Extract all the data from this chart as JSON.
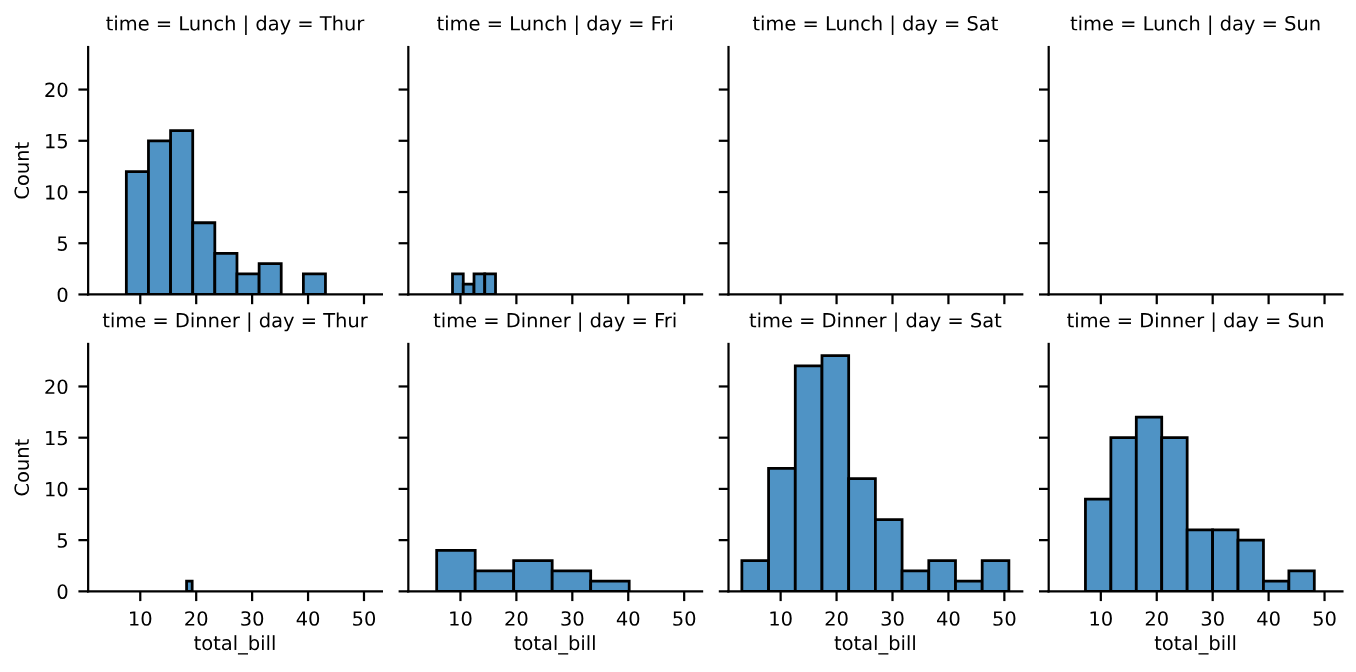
{
  "chart_data": [
    {
      "type": "histogram",
      "title": "time = Lunch | day = Thur",
      "ylabel": "Count",
      "bins": [
        7.51,
        11.466,
        15.42,
        19.38,
        23.33,
        27.29,
        31.25,
        35.2,
        39.16,
        43.11
      ],
      "values": [
        12,
        15,
        16,
        7,
        4,
        2,
        3,
        0,
        2
      ],
      "color": "#4f93c5",
      "xlim": [
        0.68,
        53.2
      ],
      "ylim": [
        0,
        24.15
      ],
      "xticks": [
        10,
        20,
        30,
        40,
        50
      ],
      "yticks": [
        0,
        5,
        10,
        15,
        20
      ],
      "tick_labels": "y"
    },
    {
      "type": "histogram",
      "title": "time = Lunch | day = Fri",
      "bins": [
        8.58,
        10.5025,
        12.425,
        14.3475,
        16.27
      ],
      "values": [
        2,
        1,
        2,
        2
      ],
      "color": "#4f93c5",
      "xlim": [
        0.68,
        53.2
      ],
      "ylim": [
        0,
        24.15
      ],
      "xticks": [
        10,
        20,
        30,
        40,
        50
      ],
      "yticks": [
        0,
        5,
        10,
        15,
        20
      ],
      "tick_labels": false
    },
    {
      "type": "histogram",
      "title": "time = Lunch | day = Sat",
      "xlim": [
        0.68,
        53.2
      ],
      "ylim": [
        0,
        24.15
      ],
      "xticks": [
        10,
        20,
        30,
        40,
        50
      ],
      "yticks": [
        0,
        5,
        10,
        15,
        20
      ],
      "tick_labels": false
    },
    {
      "type": "histogram",
      "title": "time = Lunch | day = Sun",
      "xlim": [
        0.68,
        53.2
      ],
      "ylim": [
        0,
        24.15
      ],
      "xticks": [
        10,
        20,
        30,
        40,
        50
      ],
      "yticks": [
        0,
        5,
        10,
        15,
        20
      ],
      "tick_labels": false
    },
    {
      "type": "histogram",
      "title": "time = Dinner | day = Thur",
      "xlabel": "total_bill",
      "ylabel": "Count",
      "bins": [
        18.28,
        19.28
      ],
      "values": [
        1
      ],
      "color": "#4f93c5",
      "xlim": [
        0.68,
        53.2
      ],
      "ylim": [
        0,
        24.15
      ],
      "xticks": [
        10,
        20,
        30,
        40,
        50
      ],
      "yticks": [
        0,
        5,
        10,
        15,
        20
      ]
    },
    {
      "type": "histogram",
      "title": "time = Dinner | day = Fri",
      "xlabel": "total_bill",
      "bins": [
        5.75,
        12.634,
        19.518,
        26.402,
        33.286,
        40.17
      ],
      "values": [
        4,
        2,
        3,
        2,
        1
      ],
      "color": "#4f93c5",
      "xlim": [
        0.68,
        53.2
      ],
      "ylim": [
        0,
        24.15
      ],
      "xticks": [
        10,
        20,
        30,
        40,
        50
      ],
      "yticks": [
        0,
        5,
        10,
        15,
        20
      ],
      "tick_labels": "x"
    },
    {
      "type": "histogram",
      "title": "time = Dinner | day = Sat",
      "xlabel": "total_bill",
      "bins": [
        3.07,
        7.844,
        12.618,
        17.392,
        22.166,
        26.94,
        31.714,
        36.488,
        41.262,
        46.036,
        50.81
      ],
      "values": [
        3,
        12,
        22,
        23,
        11,
        7,
        2,
        3,
        1,
        3
      ],
      "color": "#4f93c5",
      "xlim": [
        0.68,
        53.2
      ],
      "ylim": [
        0,
        24.15
      ],
      "xticks": [
        10,
        20,
        30,
        40,
        50
      ],
      "yticks": [
        0,
        5,
        10,
        15,
        20
      ],
      "tick_labels": "x"
    },
    {
      "type": "histogram",
      "title": "time = Dinner | day = Sun",
      "xlabel": "total_bill",
      "bins": [
        7.25,
        11.797,
        16.343,
        20.89,
        25.437,
        29.983,
        34.53,
        39.077,
        43.623,
        48.17
      ],
      "values": [
        9,
        15,
        17,
        15,
        6,
        6,
        5,
        1,
        2
      ],
      "color": "#4f93c5",
      "xlim": [
        0.68,
        53.2
      ],
      "ylim": [
        0,
        24.15
      ],
      "xticks": [
        10,
        20,
        30,
        40,
        50
      ],
      "yticks": [
        0,
        5,
        10,
        15,
        20
      ],
      "tick_labels": "x"
    }
  ]
}
